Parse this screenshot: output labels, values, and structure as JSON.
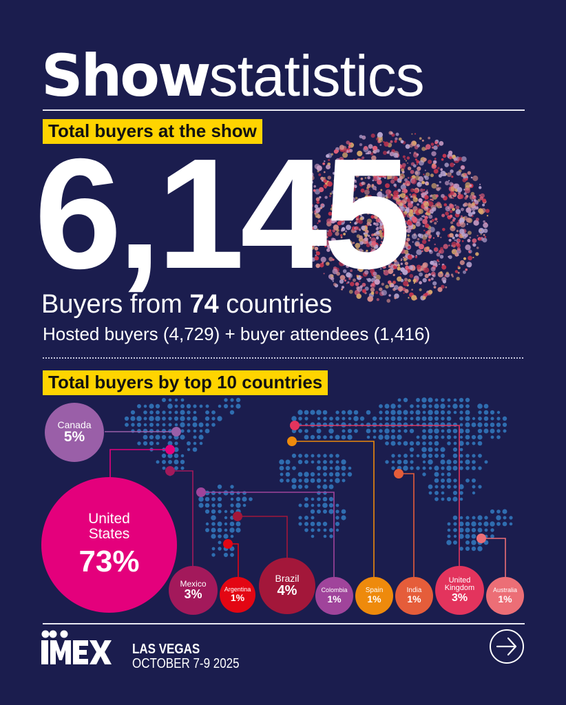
{
  "header": {
    "title_bold": "Show",
    "title_light": "statistics"
  },
  "total_section": {
    "highlight_label": "Total buyers at the show",
    "total_buyers": "6,145",
    "countries_prefix": "Buyers from ",
    "countries_count": "74",
    "countries_suffix": " countries",
    "breakdown": "Hosted buyers (4,729) + buyer attendees (1,416)"
  },
  "countries_section": {
    "highlight_label": "Total buyers by top 10 countries"
  },
  "chart_data": {
    "type": "bubble-map",
    "title": "Total buyers by top 10 countries",
    "categories": [
      "United States",
      "Canada",
      "Brazil",
      "Mexico",
      "United Kingdom",
      "Argentina",
      "Colombia",
      "Spain",
      "India",
      "Australia"
    ],
    "values": [
      73,
      5,
      4,
      3,
      3,
      1,
      1,
      1,
      1,
      1
    ],
    "unit": "%",
    "colors": {
      "United States": "#e4007c",
      "Canada": "#9a5fa8",
      "Brazil": "#a3173a",
      "Mexico": "#a3195b",
      "United Kingdom": "#e3345d",
      "Argentina": "#e30613",
      "Colombia": "#a0449b",
      "Spain": "#ee8a0c",
      "India": "#e55d3a",
      "Australia": "#ec6e76"
    }
  },
  "bubbles": {
    "canada": {
      "name": "Canada",
      "pct": "5%"
    },
    "us": {
      "name1": "United",
      "name2": "States",
      "pct": "73%"
    },
    "mexico": {
      "name": "Mexico",
      "pct": "3%"
    },
    "argentina": {
      "name": "Argentina",
      "pct": "1%"
    },
    "brazil": {
      "name": "Brazil",
      "pct": "4%"
    },
    "colombia": {
      "name": "Colombia",
      "pct": "1%"
    },
    "spain": {
      "name": "Spain",
      "pct": "1%"
    },
    "india": {
      "name": "India",
      "pct": "1%"
    },
    "uk": {
      "name1": "United",
      "name2": "Kingdom",
      "pct": "3%"
    },
    "australia": {
      "name": "Australia",
      "pct": "1%"
    }
  },
  "footer": {
    "logo_text": "IMEX",
    "location": "LAS VEGAS",
    "dates": "OCTOBER 7-9 2025",
    "next_icon": "arrow-right-circle-icon"
  },
  "colors": {
    "background": "#1b1d4e",
    "highlight": "#ffd400",
    "map_dots": "#2f6db0"
  }
}
